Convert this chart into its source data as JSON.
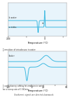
{
  "top_plot": {
    "xlim": [
      -100,
      60
    ],
    "xlabel": "Temperature (°C)",
    "label_top": "b water",
    "label_bottom": "a ctabs",
    "bg_color": "#e8f4fb",
    "line_color": "#3ab8e0",
    "caption": "Ⓐ emulsion of tetradecane in water"
  },
  "bottom_plot": {
    "xlim": [
      -40,
      60
    ],
    "xlabel": "Temperature (°C)",
    "label_top": "Endo↑",
    "bg_color": "#e8f4fb",
    "line_color": "#3ab8e0",
    "caption": "Ⓑ confectionery coating fat emulsion in water,\nfor a sweep rate of 1.5K/min"
  },
  "footer": "Exothermic signals are directed downwards",
  "bg_color": "#ffffff",
  "text_color": "#444444"
}
